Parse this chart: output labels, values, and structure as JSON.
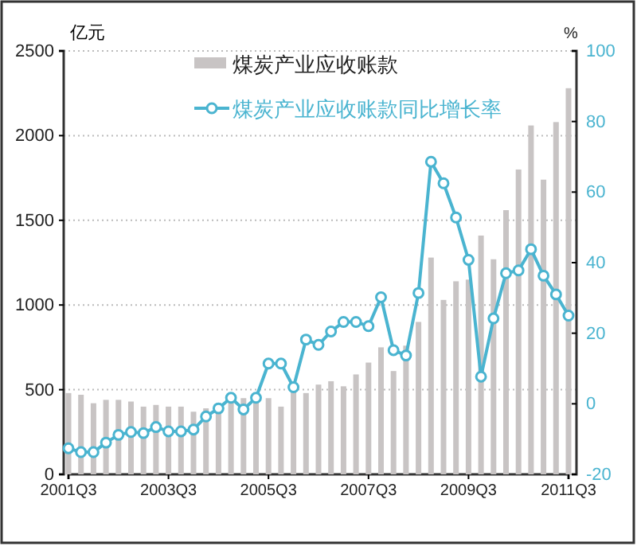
{
  "chart_data": {
    "type": "bar",
    "ylabel": "亿元",
    "y2label": "%",
    "categories": [
      "2001Q3",
      null,
      null,
      null,
      null,
      null,
      null,
      null,
      "2003Q3",
      null,
      null,
      null,
      null,
      null,
      null,
      null,
      "2005Q3",
      null,
      null,
      null,
      null,
      null,
      null,
      null,
      "2007Q3",
      null,
      null,
      null,
      null,
      null,
      null,
      null,
      "2009Q3",
      null,
      null,
      null,
      null,
      null,
      null,
      null,
      "2011Q3"
    ],
    "series": [
      {
        "name": "煤炭产业应收账款",
        "color": "#c8c4c4",
        "values": [
          480,
          470,
          420,
          440,
          440,
          430,
          400,
          410,
          400,
          400,
          370,
          390,
          420,
          440,
          450,
          430,
          450,
          400,
          490,
          480,
          530,
          550,
          520,
          590,
          660,
          750,
          610,
          760,
          900,
          1280,
          1030,
          1140,
          1150,
          1410,
          1270,
          1560,
          1800,
          2060,
          1740,
          2080,
          2280
        ]
      },
      {
        "name": "煤炭产业应收账款同比增长率",
        "type": "line",
        "axis": "y2",
        "color": "#4ab4d0",
        "values": [
          -12.6,
          -13.7,
          -13.7,
          -11,
          -8.8,
          -8,
          -8.3,
          -6.6,
          -7.8,
          -7.8,
          -7.3,
          -3.6,
          -1.3,
          1.7,
          -1.6,
          1.7,
          11.4,
          11.4,
          4.7,
          18.2,
          16.7,
          20.5,
          23.2,
          23.2,
          22,
          30.2,
          15.2,
          13.7,
          31.4,
          68.6,
          62.5,
          52.8,
          40.8,
          7.7,
          24.2,
          37,
          37.8,
          43.8,
          36.3,
          31,
          25
        ]
      }
    ],
    "ylim": [
      0,
      2500
    ],
    "yticks": [
      0,
      500,
      1000,
      1500,
      2000,
      2500
    ],
    "y2lim": [
      -20,
      100
    ],
    "y2ticks": [
      -20,
      0,
      20,
      40,
      60,
      80,
      100
    ],
    "grid": "y",
    "legend": "top",
    "marker": "circle",
    "line_style": "solid"
  }
}
